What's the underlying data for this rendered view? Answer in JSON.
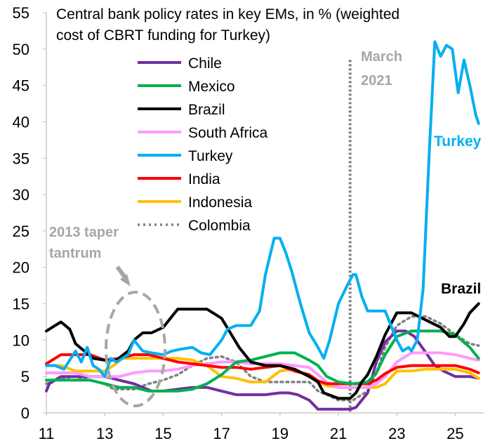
{
  "chart_data": {
    "type": "line",
    "title_lines": [
      "Central bank policy rates in key EMs, in % (weighted",
      "cost of CBRT funding for Turkey)"
    ],
    "xlabel": "",
    "ylabel": "",
    "xlim": [
      11,
      26
    ],
    "ylim": [
      0,
      55
    ],
    "x_ticks": [
      "11",
      "13",
      "15",
      "17",
      "19",
      "21",
      "23",
      "25"
    ],
    "x_tick_values": [
      11,
      13,
      15,
      17,
      19,
      21,
      23,
      25
    ],
    "y_ticks": [
      "0",
      "5",
      "10",
      "15",
      "20",
      "25",
      "30",
      "35",
      "40",
      "45",
      "50",
      "55"
    ],
    "y_tick_values": [
      0,
      5,
      10,
      15,
      20,
      25,
      30,
      35,
      40,
      45,
      50,
      55
    ],
    "grid": false,
    "legend_position": "top-left",
    "series": [
      {
        "name": "Chile",
        "color": "#7030a0",
        "dash": "solid",
        "x": [
          11.0,
          11.1,
          11.5,
          12.0,
          12.5,
          13.0,
          13.5,
          14.0,
          14.3,
          14.6,
          15.0,
          15.5,
          16.0,
          16.5,
          17.0,
          17.5,
          18.0,
          18.5,
          19.0,
          19.3,
          19.6,
          20.0,
          20.3,
          20.5,
          21.0,
          21.4,
          21.6,
          22.0,
          22.3,
          22.6,
          23.0,
          23.3,
          23.6,
          24.0,
          24.3,
          24.6,
          25.0,
          25.5,
          25.8
        ],
        "y": [
          3.0,
          4.0,
          5.0,
          5.0,
          5.0,
          5.0,
          4.5,
          4.0,
          3.5,
          3.0,
          3.0,
          3.25,
          3.5,
          3.5,
          3.0,
          2.5,
          2.5,
          2.5,
          2.75,
          2.75,
          2.5,
          1.75,
          0.5,
          0.5,
          0.5,
          0.5,
          0.75,
          2.75,
          7.0,
          9.75,
          11.25,
          11.25,
          10.5,
          8.25,
          6.5,
          5.75,
          5.0,
          5.0,
          4.75
        ]
      },
      {
        "name": "Mexico",
        "color": "#00b050",
        "dash": "solid",
        "x": [
          11.0,
          11.5,
          12.0,
          12.5,
          13.0,
          13.5,
          14.0,
          14.5,
          15.0,
          15.5,
          16.0,
          16.5,
          17.0,
          17.5,
          18.0,
          18.5,
          19.0,
          19.5,
          20.0,
          20.3,
          20.6,
          21.0,
          21.5,
          22.0,
          22.3,
          22.6,
          23.0,
          23.5,
          24.0,
          24.5,
          25.0,
          25.5,
          25.8
        ],
        "y": [
          4.5,
          4.5,
          4.5,
          4.5,
          4.0,
          3.5,
          3.5,
          3.0,
          3.0,
          3.0,
          3.25,
          4.0,
          5.25,
          7.0,
          7.25,
          7.75,
          8.25,
          8.25,
          7.25,
          6.5,
          5.0,
          4.25,
          4.0,
          4.25,
          5.5,
          8.0,
          10.5,
          11.25,
          11.25,
          11.25,
          10.75,
          9.0,
          7.5
        ]
      },
      {
        "name": "Brazil",
        "color": "#000000",
        "dash": "solid",
        "x": [
          11.0,
          11.3,
          11.5,
          11.8,
          12.0,
          12.3,
          12.6,
          13.0,
          13.4,
          13.8,
          14.0,
          14.3,
          14.6,
          15.0,
          15.5,
          16.0,
          16.5,
          16.8,
          17.0,
          17.3,
          17.6,
          18.0,
          18.5,
          19.0,
          19.5,
          20.0,
          20.3,
          20.5,
          21.0,
          21.2,
          21.4,
          21.6,
          21.8,
          22.0,
          22.3,
          22.6,
          23.0,
          23.5,
          24.0,
          24.5,
          24.8,
          25.0,
          25.3,
          25.5,
          25.8
        ],
        "y": [
          11.25,
          12.0,
          12.5,
          11.5,
          9.5,
          8.5,
          7.5,
          7.25,
          7.25,
          8.5,
          10.0,
          11.0,
          11.0,
          11.75,
          14.25,
          14.25,
          14.25,
          13.5,
          13.0,
          11.0,
          9.0,
          7.0,
          6.5,
          6.5,
          6.0,
          5.0,
          4.25,
          2.75,
          2.0,
          2.0,
          2.0,
          2.75,
          4.25,
          5.25,
          7.75,
          10.75,
          13.75,
          13.75,
          12.75,
          11.75,
          10.5,
          10.5,
          12.25,
          13.75,
          15.0
        ]
      },
      {
        "name": "South Africa",
        "color": "#ff99ff",
        "dash": "solid",
        "x": [
          11.0,
          11.5,
          12.0,
          12.5,
          13.0,
          13.5,
          14.0,
          14.5,
          15.0,
          15.5,
          16.0,
          16.5,
          17.0,
          17.5,
          18.0,
          18.5,
          19.0,
          19.5,
          20.0,
          20.3,
          20.6,
          21.0,
          21.5,
          22.0,
          22.3,
          22.6,
          23.0,
          23.5,
          24.0,
          24.5,
          25.0,
          25.5,
          25.8
        ],
        "y": [
          5.5,
          5.5,
          5.5,
          5.0,
          5.0,
          5.0,
          5.5,
          5.75,
          5.75,
          6.0,
          6.5,
          6.75,
          7.0,
          7.0,
          6.75,
          6.75,
          6.75,
          6.5,
          6.25,
          5.25,
          4.25,
          3.5,
          3.5,
          3.5,
          4.0,
          5.0,
          7.0,
          8.25,
          8.25,
          8.25,
          8.0,
          7.5,
          7.25
        ]
      },
      {
        "name": "Turkey",
        "color": "#00b0f0",
        "dash": "solid",
        "x": [
          11.0,
          11.3,
          11.6,
          12.0,
          12.2,
          12.4,
          12.6,
          12.8,
          13.0,
          13.2,
          13.4,
          13.6,
          13.8,
          14.0,
          14.3,
          14.6,
          15.0,
          15.3,
          15.6,
          16.0,
          16.3,
          16.6,
          17.0,
          17.2,
          17.5,
          17.8,
          18.0,
          18.3,
          18.5,
          18.8,
          19.0,
          19.2,
          19.4,
          19.7,
          20.0,
          20.3,
          20.5,
          20.7,
          21.0,
          21.3,
          21.5,
          21.6,
          21.8,
          22.0,
          22.3,
          22.6,
          22.8,
          23.0,
          23.2,
          23.4,
          23.5,
          23.7,
          23.9,
          24.1,
          24.3,
          24.5,
          24.7,
          24.9,
          25.1,
          25.3,
          25.5,
          25.7,
          25.8
        ],
        "y": [
          6.5,
          6.5,
          6.0,
          8.5,
          7.0,
          9.0,
          6.5,
          6.0,
          5.0,
          7.5,
          7.0,
          7.5,
          8.0,
          10.0,
          8.5,
          8.25,
          8.0,
          8.5,
          8.75,
          9.0,
          8.25,
          8.0,
          10.0,
          11.5,
          12.0,
          12.0,
          12.0,
          14.0,
          19.0,
          24.0,
          24.0,
          22.0,
          19.5,
          15.0,
          11.0,
          9.0,
          7.5,
          10.0,
          15.0,
          17.5,
          19.0,
          19.0,
          16.0,
          14.0,
          14.0,
          14.0,
          12.0,
          10.0,
          8.5,
          9.0,
          8.5,
          10.0,
          17.0,
          35.0,
          51.0,
          49.0,
          50.5,
          50.0,
          44.0,
          48.5,
          45.0,
          41.0,
          39.75
        ]
      },
      {
        "name": "India",
        "color": "#ff0000",
        "dash": "solid",
        "x": [
          11.0,
          11.5,
          12.0,
          12.5,
          13.0,
          13.5,
          14.0,
          14.5,
          15.0,
          15.5,
          16.0,
          16.5,
          17.0,
          17.5,
          18.0,
          18.5,
          19.0,
          19.5,
          20.0,
          20.3,
          20.6,
          21.0,
          21.5,
          22.0,
          22.3,
          22.6,
          23.0,
          23.5,
          24.0,
          24.5,
          25.0,
          25.5,
          25.8
        ],
        "y": [
          6.75,
          8.0,
          8.0,
          8.0,
          7.25,
          7.5,
          8.0,
          8.0,
          7.5,
          7.0,
          6.75,
          6.5,
          6.25,
          6.25,
          6.0,
          6.25,
          6.5,
          5.75,
          5.25,
          4.4,
          4.0,
          4.0,
          4.0,
          4.0,
          4.5,
          5.4,
          6.25,
          6.5,
          6.5,
          6.5,
          6.5,
          6.0,
          5.5
        ]
      },
      {
        "name": "Indonesia",
        "color": "#ffc000",
        "dash": "solid",
        "x": [
          11.0,
          11.5,
          12.0,
          12.5,
          13.0,
          13.3,
          13.6,
          14.0,
          14.5,
          15.0,
          15.5,
          16.0,
          16.5,
          17.0,
          17.5,
          18.0,
          18.5,
          19.0,
          19.5,
          20.0,
          20.3,
          20.6,
          21.0,
          21.5,
          22.0,
          22.3,
          22.6,
          23.0,
          23.5,
          24.0,
          24.5,
          25.0,
          25.5,
          25.8
        ],
        "y": [
          6.5,
          6.5,
          5.75,
          5.75,
          5.75,
          6.5,
          7.5,
          7.5,
          7.5,
          7.5,
          7.5,
          7.25,
          6.5,
          5.0,
          4.75,
          4.25,
          4.25,
          5.75,
          6.0,
          5.0,
          4.25,
          3.75,
          3.5,
          3.5,
          3.5,
          3.5,
          4.0,
          5.75,
          5.75,
          6.0,
          6.0,
          6.0,
          5.5,
          4.75
        ]
      },
      {
        "name": "Colombia",
        "color": "#808080",
        "dash": "dotted",
        "x": [
          11.0,
          11.5,
          12.0,
          12.5,
          13.0,
          13.3,
          13.6,
          14.0,
          14.5,
          15.0,
          15.5,
          16.0,
          16.5,
          17.0,
          17.5,
          18.0,
          18.5,
          19.0,
          19.5,
          20.0,
          20.3,
          20.6,
          21.0,
          21.5,
          22.0,
          22.3,
          22.6,
          23.0,
          23.5,
          24.0,
          24.5,
          25.0,
          25.5,
          25.8
        ],
        "y": [
          4.0,
          4.75,
          5.0,
          4.5,
          4.0,
          3.25,
          3.25,
          3.25,
          4.0,
          4.5,
          5.25,
          6.5,
          7.5,
          7.75,
          7.0,
          5.0,
          4.25,
          4.25,
          4.25,
          4.25,
          3.0,
          2.5,
          1.75,
          1.75,
          3.0,
          5.5,
          9.0,
          12.0,
          13.25,
          13.25,
          12.25,
          10.75,
          9.5,
          9.25
        ]
      }
    ],
    "annotations": {
      "march_2021_lines": [
        "March",
        "2021"
      ],
      "march_2021_x": 21.4,
      "taper_lines": [
        "2013 taper",
        "tantrum"
      ],
      "turkey_label": "Turkey",
      "brazil_label": "Brazil"
    }
  }
}
